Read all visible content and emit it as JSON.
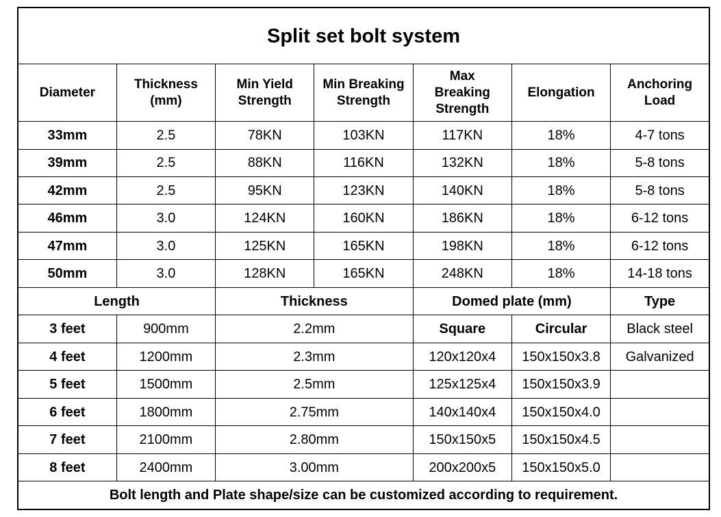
{
  "title": "Split set bolt system",
  "specs": {
    "header": [
      "Diameter",
      "Thickness\n(mm)",
      "Min Yield\nStrength",
      "Min Breaking\nStrength",
      "Max\nBreaking\nStrength",
      "Elongation",
      "Anchoring\nLoad"
    ],
    "rows": [
      [
        "33mm",
        "2.5",
        "78KN",
        "103KN",
        "117KN",
        "18%",
        "4-7 tons"
      ],
      [
        "39mm",
        "2.5",
        "88KN",
        "116KN",
        "132KN",
        "18%",
        "5-8 tons"
      ],
      [
        "42mm",
        "2.5",
        "95KN",
        "123KN",
        "140KN",
        "18%",
        "5-8 tons"
      ],
      [
        "46mm",
        "3.0",
        "124KN",
        "160KN",
        "186KN",
        "18%",
        "6-12 tons"
      ],
      [
        "47mm",
        "3.0",
        "125KN",
        "165KN",
        "198KN",
        "18%",
        "6-12 tons"
      ],
      [
        "50mm",
        "3.0",
        "128KN",
        "165KN",
        "248KN",
        "18%",
        "14-18 tons"
      ]
    ]
  },
  "sizes": {
    "header": [
      "Length",
      "Thickness",
      "Domed plate (mm)",
      "Type"
    ],
    "rows": [
      [
        "3 feet",
        "900mm",
        "2.2mm",
        "Square",
        "Circular",
        "Black steel"
      ],
      [
        "4 feet",
        "1200mm",
        "2.3mm",
        "120x120x4",
        "150x150x3.8",
        "Galvanized"
      ],
      [
        "5 feet",
        "1500mm",
        "2.5mm",
        "125x125x4",
        "150x150x3.9"
      ],
      [
        "6 feet",
        "1800mm",
        "2.75mm",
        "140x140x4",
        "150x150x4.0"
      ],
      [
        "7 feet",
        "2100mm",
        "2.80mm",
        "150x150x5",
        "150x150x4.5"
      ],
      [
        "8 feet",
        "2400mm",
        "3.00mm",
        "200x200x5",
        "150x150x5.0"
      ]
    ]
  },
  "footer": "Bolt length and Plate shape/size can be customized according to requirement."
}
